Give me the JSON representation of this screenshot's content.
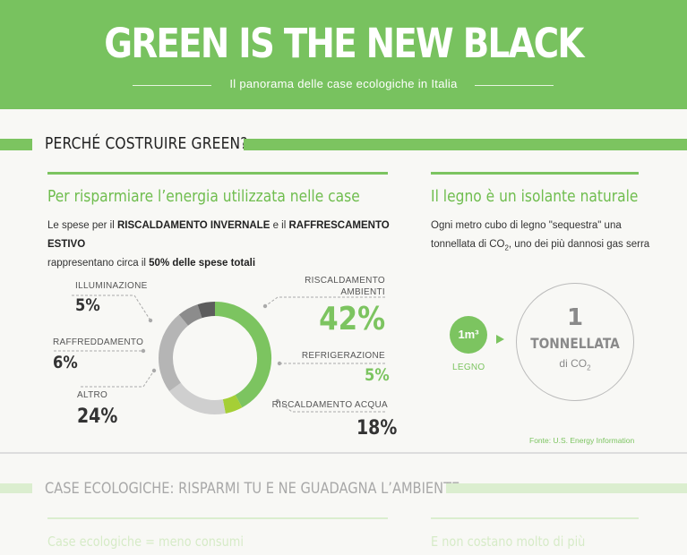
{
  "header": {
    "title": "GREEN IS THE NEW BLACK",
    "subtitle": "Il panorama delle case ecologiche in Italia"
  },
  "section1": {
    "title": "PERCHÉ COSTRUIRE GREEN?"
  },
  "left": {
    "title": "Per risparmiare l’energia utilizzata nelle case",
    "text_1": "Le spese per il ",
    "text_b1": "RISCALDAMENTO INVERNALE",
    "text_2": " e il ",
    "text_b2": "RAFFRESCAMENTO ESTIVO",
    "text_3": "rappresentano circa il ",
    "text_b3": "50% delle spese totali"
  },
  "chart_data": {
    "type": "pie",
    "categories": [
      "RISCALDAMENTO AMBIENTI",
      "REFRIGERAZIONE",
      "RISCALDAMENTO ACQUA",
      "ALTRO",
      "RAFFREDDAMENTO",
      "ILLUMINAZIONE"
    ],
    "values": [
      42,
      5,
      18,
      24,
      6,
      5
    ],
    "labels": [
      "42%",
      "5%",
      "18%",
      "24%",
      "6%",
      "5%"
    ],
    "colors": [
      "#7cc460",
      "#a5cf36",
      "#cfcfcf",
      "#b5b5b5",
      "#8c8c8c",
      "#5d5d5d"
    ]
  },
  "right": {
    "title": "Il legno è un isolante naturale",
    "text_line1": "Ogni metro cubo di legno \"sequestra\" una",
    "text_line2a": "tonnellata di CO",
    "text_line2sub": "2",
    "text_line2b": ", uno dei più dannosi gas serra",
    "small_label": "1m³",
    "small_caption": "LEGNO",
    "big_number": "1",
    "big_label": "TONNELLATA",
    "big_sub": "di CO",
    "big_sub_sub": "2",
    "source": "Fonte: U.S. Energy Information"
  },
  "section2": {
    "title": "CASE ECOLOGICHE: RISPARMI TU E NE GUADAGNA L’AMBIENTE",
    "left_sub": "Case ecologiche = meno consumi",
    "right_sub": "E non costano molto di più"
  }
}
